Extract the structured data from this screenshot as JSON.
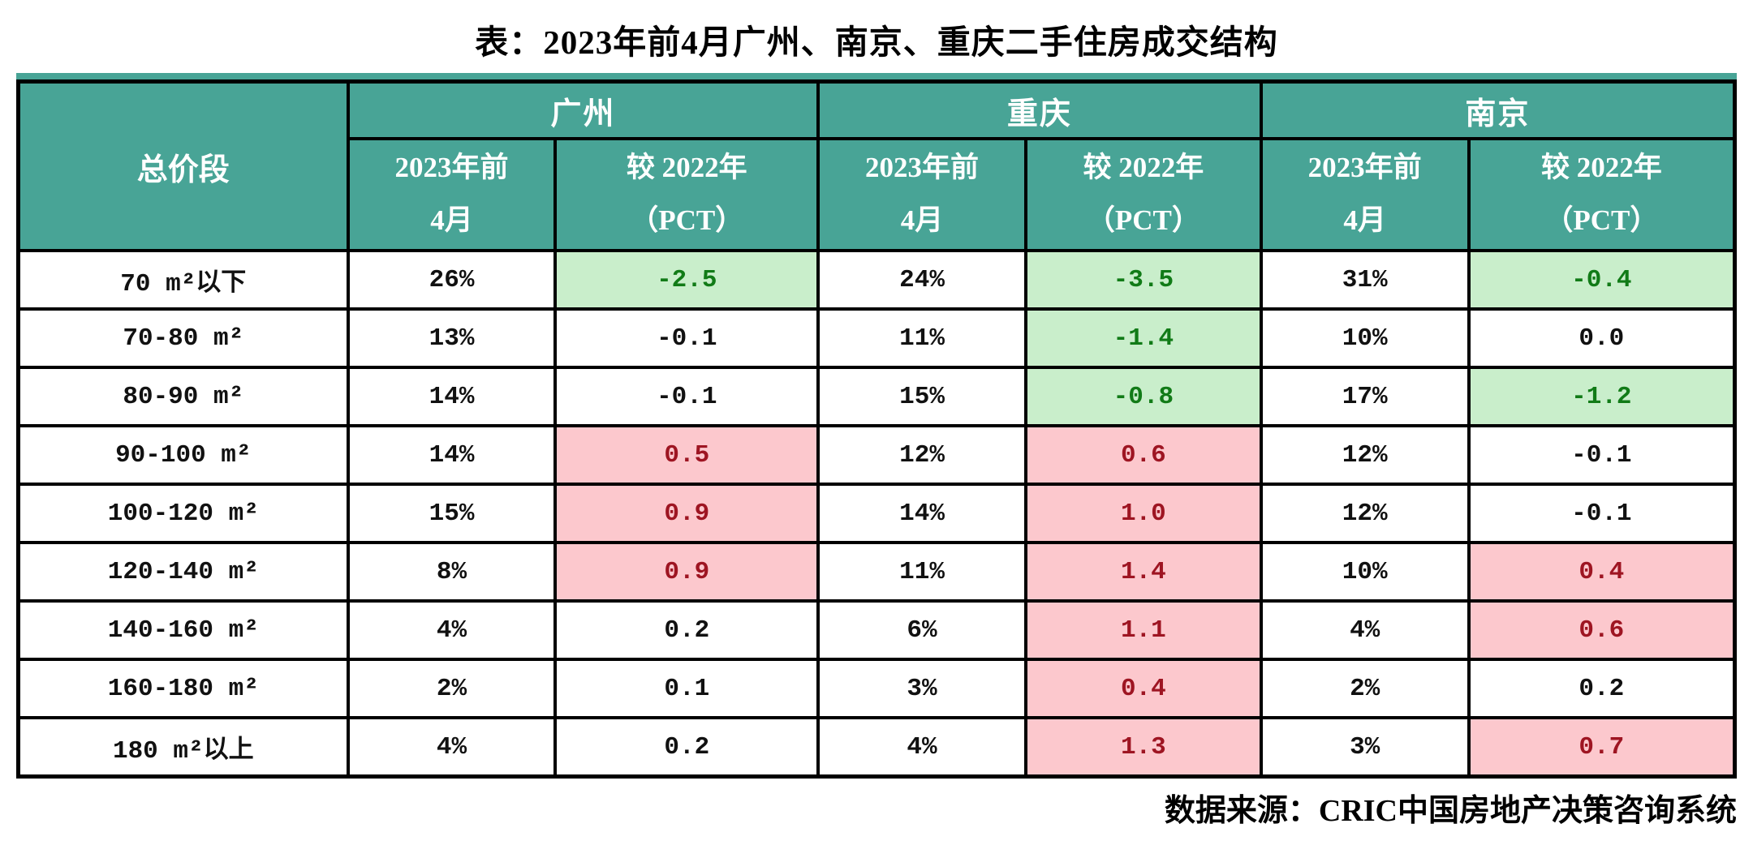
{
  "title": "表：2023年前4月广州、南京、重庆二手住房成交结构",
  "source": "数据来源：CRIC中国房地产决策咨询系统",
  "colors": {
    "header_teal": "#48A496",
    "green_bg": "#C9EECB",
    "green_text": "#117B17",
    "pink_bg": "#FCC8CD",
    "red_text": "#9E1522",
    "border": "#000000"
  },
  "table": {
    "corner_header": "总价段",
    "groups": [
      {
        "city": "广州",
        "period_label": "2023年前\n4月",
        "change_label": "较 2022年\n（PCT）"
      },
      {
        "city": "重庆",
        "period_label": "2023年前\n4月",
        "change_label": "较 2022年\n（PCT）"
      },
      {
        "city": "南京",
        "period_label": "2023年前\n4月",
        "change_label": "较 2022年\n（PCT）"
      }
    ],
    "rows": [
      {
        "label": "70 m²以下",
        "cells": [
          {
            "text": "26%",
            "hl": "none"
          },
          {
            "text": "-2.5",
            "hl": "green"
          },
          {
            "text": "24%",
            "hl": "none"
          },
          {
            "text": "-3.5",
            "hl": "green"
          },
          {
            "text": "31%",
            "hl": "none"
          },
          {
            "text": "-0.4",
            "hl": "green"
          }
        ]
      },
      {
        "label": "70-80 m²",
        "cells": [
          {
            "text": "13%",
            "hl": "none"
          },
          {
            "text": "-0.1",
            "hl": "none"
          },
          {
            "text": "11%",
            "hl": "none"
          },
          {
            "text": "-1.4",
            "hl": "green"
          },
          {
            "text": "10%",
            "hl": "none"
          },
          {
            "text": "0.0",
            "hl": "none"
          }
        ]
      },
      {
        "label": "80-90 m²",
        "cells": [
          {
            "text": "14%",
            "hl": "none"
          },
          {
            "text": "-0.1",
            "hl": "none"
          },
          {
            "text": "15%",
            "hl": "none"
          },
          {
            "text": "-0.8",
            "hl": "green"
          },
          {
            "text": "17%",
            "hl": "none"
          },
          {
            "text": "-1.2",
            "hl": "green"
          }
        ]
      },
      {
        "label": "90-100 m²",
        "cells": [
          {
            "text": "14%",
            "hl": "none"
          },
          {
            "text": "0.5",
            "hl": "red"
          },
          {
            "text": "12%",
            "hl": "none"
          },
          {
            "text": "0.6",
            "hl": "red"
          },
          {
            "text": "12%",
            "hl": "none"
          },
          {
            "text": "-0.1",
            "hl": "none"
          }
        ]
      },
      {
        "label": "100-120 m²",
        "cells": [
          {
            "text": "15%",
            "hl": "none"
          },
          {
            "text": "0.9",
            "hl": "red"
          },
          {
            "text": "14%",
            "hl": "none"
          },
          {
            "text": "1.0",
            "hl": "red"
          },
          {
            "text": "12%",
            "hl": "none"
          },
          {
            "text": "-0.1",
            "hl": "none"
          }
        ]
      },
      {
        "label": "120-140 m²",
        "cells": [
          {
            "text": "8%",
            "hl": "none"
          },
          {
            "text": "0.9",
            "hl": "red"
          },
          {
            "text": "11%",
            "hl": "none"
          },
          {
            "text": "1.4",
            "hl": "red"
          },
          {
            "text": "10%",
            "hl": "none"
          },
          {
            "text": "0.4",
            "hl": "red"
          }
        ]
      },
      {
        "label": "140-160 m²",
        "cells": [
          {
            "text": "4%",
            "hl": "none"
          },
          {
            "text": "0.2",
            "hl": "none"
          },
          {
            "text": "6%",
            "hl": "none"
          },
          {
            "text": "1.1",
            "hl": "red"
          },
          {
            "text": "4%",
            "hl": "none"
          },
          {
            "text": "0.6",
            "hl": "red"
          }
        ]
      },
      {
        "label": "160-180 m²",
        "cells": [
          {
            "text": "2%",
            "hl": "none"
          },
          {
            "text": "0.1",
            "hl": "none"
          },
          {
            "text": "3%",
            "hl": "none"
          },
          {
            "text": "0.4",
            "hl": "red"
          },
          {
            "text": "2%",
            "hl": "none"
          },
          {
            "text": "0.2",
            "hl": "none"
          }
        ]
      },
      {
        "label": "180 m²以上",
        "cells": [
          {
            "text": "4%",
            "hl": "none"
          },
          {
            "text": "0.2",
            "hl": "none"
          },
          {
            "text": "4%",
            "hl": "none"
          },
          {
            "text": "1.3",
            "hl": "red"
          },
          {
            "text": "3%",
            "hl": "none"
          },
          {
            "text": "0.7",
            "hl": "red"
          }
        ]
      }
    ]
  },
  "chart_data": {
    "type": "table",
    "title": "表：2023年前4月广州、南京、重庆二手住房成交结构",
    "categories": [
      "70 m²以下",
      "70-80 m²",
      "80-90 m²",
      "90-100 m²",
      "100-120 m²",
      "120-140 m²",
      "140-160 m²",
      "160-180 m²",
      "180 m²以上"
    ],
    "series": [
      {
        "name": "广州 2023年前4月",
        "values": [
          "26%",
          "13%",
          "14%",
          "14%",
          "15%",
          "8%",
          "4%",
          "2%",
          "4%"
        ]
      },
      {
        "name": "广州 较2022年（PCT）",
        "values": [
          -2.5,
          -0.1,
          -0.1,
          0.5,
          0.9,
          0.9,
          0.2,
          0.1,
          0.2
        ]
      },
      {
        "name": "重庆 2023年前4月",
        "values": [
          "24%",
          "11%",
          "15%",
          "12%",
          "14%",
          "11%",
          "6%",
          "3%",
          "4%"
        ]
      },
      {
        "name": "重庆 较2022年（PCT）",
        "values": [
          -3.5,
          -1.4,
          -0.8,
          0.6,
          1.0,
          1.4,
          1.1,
          0.4,
          1.3
        ]
      },
      {
        "name": "南京 2023年前4月",
        "values": [
          "31%",
          "10%",
          "17%",
          "12%",
          "12%",
          "10%",
          "4%",
          "2%",
          "3%"
        ]
      },
      {
        "name": "南京 较2022年（PCT）",
        "values": [
          -0.4,
          0.0,
          -1.2,
          -0.1,
          -0.1,
          0.4,
          0.6,
          0.2,
          0.7
        ]
      }
    ],
    "legend_position": "none",
    "source": "数据来源：CRIC中国房地产决策咨询系统",
    "notes": "负值单元格为浅绿底深绿字，正值升幅单元格为浅粉底深红字"
  }
}
